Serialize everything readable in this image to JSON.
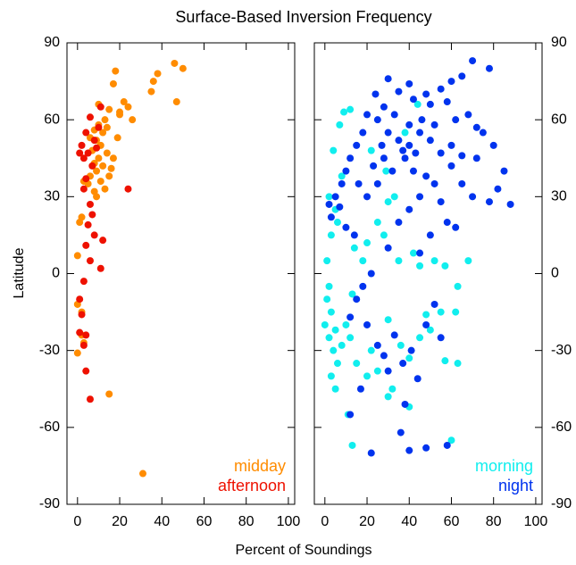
{
  "chart_data": [
    {
      "type": "scatter",
      "title": "Surface-Based Inversion Frequency",
      "xlabel": "Percent of Soundings",
      "ylabel": "Latitude",
      "xlim": [
        -5,
        103
      ],
      "ylim": [
        -90,
        90
      ],
      "xticks": [
        0,
        20,
        40,
        60,
        80,
        100
      ],
      "yticks": [
        -90,
        -60,
        -30,
        0,
        30,
        60,
        90
      ],
      "legend": "lower right",
      "series": [
        {
          "name": "midday",
          "color": "#ff8c00",
          "x": [
            46,
            50,
            38,
            18,
            17,
            36,
            35,
            47,
            22,
            24,
            20,
            26,
            15,
            13,
            10,
            8,
            12,
            6,
            9,
            11,
            7,
            14,
            10,
            8,
            12,
            16,
            9,
            6,
            11,
            5,
            15,
            13,
            8,
            9,
            17,
            19,
            14,
            3,
            2,
            1,
            0,
            0,
            2,
            2,
            0,
            3,
            15,
            31,
            20,
            10
          ],
          "values": [
            82,
            80,
            78,
            79,
            74,
            75,
            71,
            67,
            67,
            65,
            62,
            60,
            64,
            60,
            58,
            56,
            55,
            53,
            52,
            50,
            48,
            47,
            45,
            43,
            42,
            41,
            40,
            38,
            36,
            35,
            38,
            33,
            32,
            30,
            45,
            53,
            57,
            36,
            22,
            20,
            7,
            -12,
            -15,
            -24,
            -31,
            -27,
            -47,
            -78,
            63,
            66
          ]
        },
        {
          "name": "afternoon",
          "color": "#ee1100",
          "x": [
            6,
            4,
            2,
            3,
            5,
            7,
            4,
            3,
            6,
            7,
            5,
            8,
            4,
            12,
            6,
            11,
            3,
            1,
            2,
            1,
            4,
            3,
            4,
            6,
            24,
            11,
            10,
            8,
            9,
            1
          ],
          "values": [
            61,
            55,
            50,
            45,
            47,
            42,
            37,
            33,
            27,
            23,
            19,
            15,
            11,
            13,
            5,
            2,
            -3,
            -10,
            -16,
            -23,
            -24,
            -28,
            -38,
            -49,
            33,
            65,
            57,
            52,
            49,
            47
          ]
        }
      ]
    },
    {
      "type": "scatter",
      "xlim": [
        -5,
        103
      ],
      "ylim": [
        -90,
        90
      ],
      "xticks": [
        0,
        20,
        40,
        60,
        80,
        100
      ],
      "yticks": [
        -90,
        -60,
        -30,
        0,
        30,
        60,
        90
      ],
      "legend": "lower right",
      "series": [
        {
          "name": "morning",
          "color": "#11eeee",
          "x": [
            2,
            1,
            3,
            0,
            2,
            5,
            4,
            6,
            3,
            5,
            8,
            10,
            12,
            15,
            11,
            13,
            20,
            22,
            25,
            30,
            32,
            36,
            40,
            45,
            48,
            50,
            55,
            57,
            63,
            62,
            1,
            3,
            5,
            2,
            8,
            4,
            7,
            9,
            12,
            6,
            14,
            18,
            20,
            25,
            28,
            30,
            35,
            42,
            45,
            52,
            57,
            63,
            68,
            22,
            29,
            33,
            38,
            44,
            13,
            60,
            40,
            30
          ],
          "values": [
            -5,
            -10,
            -15,
            -20,
            -25,
            -22,
            -30,
            -35,
            -40,
            -45,
            -28,
            -20,
            -25,
            -35,
            -55,
            -67,
            -40,
            -30,
            -38,
            -18,
            -45,
            -28,
            -33,
            -25,
            -16,
            -22,
            -15,
            -34,
            -35,
            -15,
            5,
            15,
            25,
            30,
            38,
            48,
            58,
            63,
            64,
            20,
            10,
            5,
            12,
            20,
            15,
            28,
            5,
            8,
            3,
            5,
            3,
            -5,
            5,
            48,
            40,
            30,
            55,
            66,
            -8,
            -65,
            -52,
            -48
          ]
        },
        {
          "name": "night",
          "color": "#0033ee",
          "x": [
            70,
            78,
            65,
            60,
            55,
            48,
            40,
            35,
            30,
            42,
            50,
            58,
            62,
            68,
            72,
            75,
            80,
            85,
            82,
            88,
            78,
            70,
            65,
            60,
            55,
            50,
            45,
            40,
            35,
            30,
            25,
            20,
            18,
            15,
            12,
            10,
            8,
            5,
            2,
            3,
            7,
            10,
            14,
            20,
            25,
            28,
            32,
            38,
            42,
            48,
            52,
            55,
            45,
            40,
            35,
            30,
            22,
            18,
            15,
            12,
            20,
            25,
            28,
            33,
            37,
            41,
            44,
            48,
            52,
            55,
            17,
            12,
            22,
            40,
            48,
            58,
            38,
            30,
            36,
            45,
            50,
            58,
            62,
            33,
            46,
            52,
            40,
            43,
            37,
            27,
            23,
            16,
            60,
            65,
            72,
            28,
            24
          ],
          "values": [
            83,
            80,
            77,
            75,
            72,
            70,
            74,
            71,
            76,
            68,
            66,
            67,
            60,
            62,
            57,
            55,
            50,
            40,
            33,
            27,
            28,
            30,
            35,
            42,
            47,
            52,
            55,
            58,
            52,
            55,
            60,
            62,
            55,
            50,
            45,
            40,
            35,
            30,
            27,
            22,
            26,
            18,
            15,
            30,
            35,
            45,
            40,
            45,
            40,
            38,
            35,
            28,
            30,
            25,
            20,
            10,
            0,
            -5,
            -10,
            -17,
            -20,
            -28,
            -32,
            -24,
            -35,
            -30,
            -41,
            -20,
            -12,
            -25,
            -45,
            -55,
            -70,
            -69,
            -68,
            -67,
            -51,
            -38,
            -62,
            8,
            15,
            20,
            18,
            62,
            60,
            58,
            50,
            47,
            48,
            50,
            42,
            35,
            50,
            46,
            45,
            65,
            70
          ]
        }
      ]
    }
  ]
}
